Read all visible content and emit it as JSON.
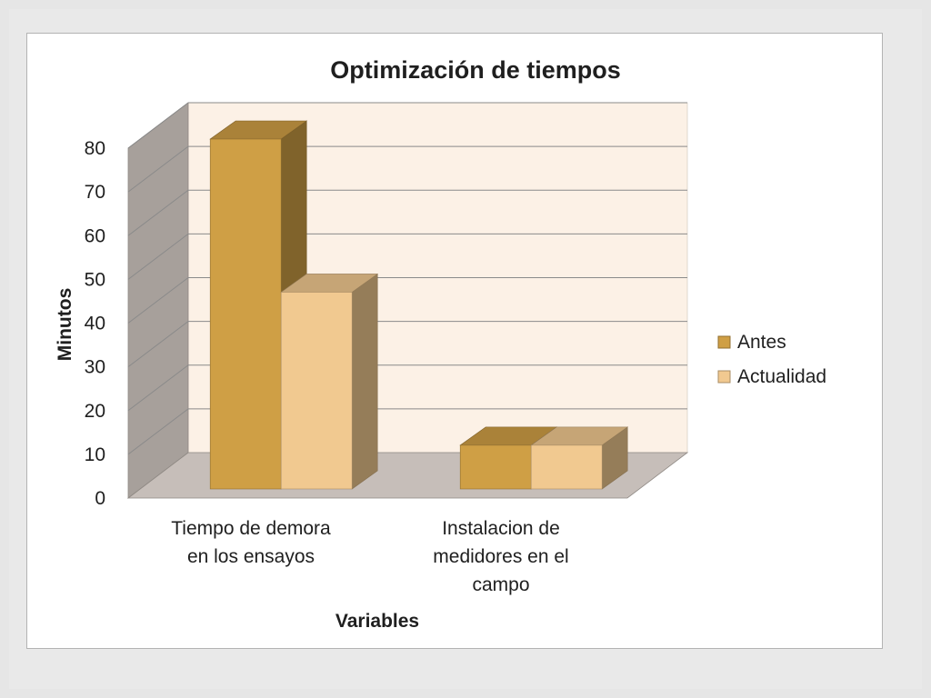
{
  "chart_data": {
    "type": "bar",
    "title": "Optimización de tiempos",
    "xlabel": "Variables",
    "ylabel": "Minutos",
    "categories": [
      [
        "Tiempo de demora",
        "en los ensayos"
      ],
      [
        "Instalacion de",
        "medidores en el",
        "campo"
      ]
    ],
    "series": [
      {
        "name": "Antes",
        "values": [
          80,
          10
        ],
        "color": "#CF9F45"
      },
      {
        "name": "Actualidad",
        "values": [
          45,
          10
        ],
        "color": "#F1C990"
      }
    ],
    "ylim": [
      0,
      80
    ],
    "yticks": [
      0,
      10,
      20,
      30,
      40,
      50,
      60,
      70,
      80
    ],
    "grid": true,
    "legend": "right",
    "three_d": true,
    "colors": {
      "back_wall": "#FCF1E6",
      "side_wall": "#A7A09B",
      "floor": "#C6BEB9",
      "gridline": "#8A8A8A"
    }
  }
}
